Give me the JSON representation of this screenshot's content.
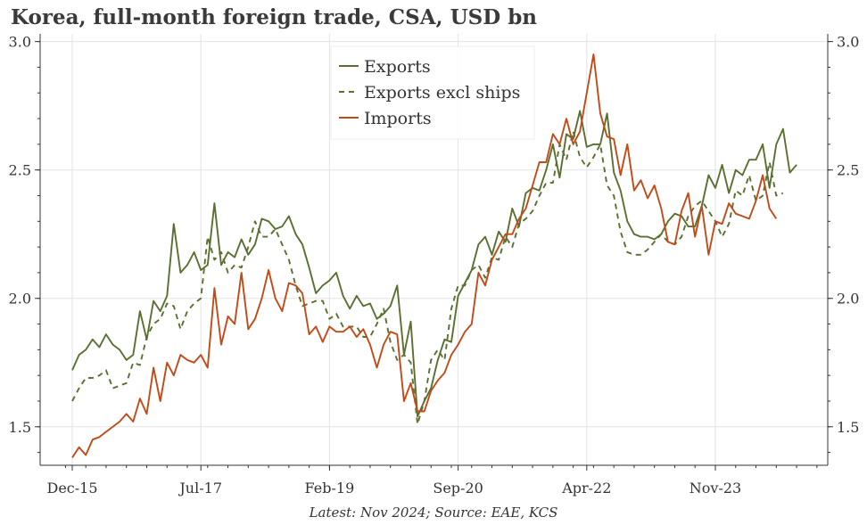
{
  "title": "Korea, full-month foreign trade, CSA, USD bn",
  "footer": "Latest: Nov 2024; Source: EAE, KCS",
  "chart_data": {
    "type": "line",
    "ylim": [
      1.35,
      3.03
    ],
    "yticks": [
      "1.5",
      "2.0",
      "2.5",
      "3.0"
    ],
    "xticks": [
      "Dec-15",
      "Jul-17",
      "Feb-19",
      "Sep-20",
      "Apr-22",
      "Nov-23"
    ],
    "x_start": "Dec-15",
    "x_end": "Nov-24",
    "grid": true,
    "legend_position": "top-center",
    "series": [
      {
        "name": "Exports",
        "color": "#5a7030",
        "dash": "none",
        "values": [
          1.72,
          1.78,
          1.8,
          1.84,
          1.81,
          1.86,
          1.82,
          1.8,
          1.76,
          1.78,
          1.95,
          1.84,
          1.99,
          1.95,
          2.01,
          2.29,
          2.1,
          2.13,
          2.18,
          2.11,
          2.13,
          2.37,
          2.13,
          2.18,
          2.16,
          2.23,
          2.17,
          2.21,
          2.31,
          2.3,
          2.27,
          2.28,
          2.32,
          2.25,
          2.21,
          2.12,
          2.02,
          2.05,
          2.07,
          2.1,
          2.01,
          1.96,
          2.01,
          1.97,
          1.98,
          1.92,
          1.94,
          1.97,
          2.05,
          1.78,
          1.91,
          1.54,
          1.6,
          1.65,
          1.76,
          1.84,
          1.83,
          2.01,
          2.06,
          2.11,
          2.21,
          2.24,
          2.17,
          2.26,
          2.22,
          2.35,
          2.28,
          2.41,
          2.43,
          2.42,
          2.5,
          2.6,
          2.47,
          2.64,
          2.62,
          2.73,
          2.59,
          2.6,
          2.6,
          2.72,
          2.49,
          2.42,
          2.3,
          2.25,
          2.24,
          2.24,
          2.23,
          2.25,
          2.3,
          2.33,
          2.32,
          2.28,
          2.28,
          2.36,
          2.48,
          2.43,
          2.52,
          2.41,
          2.5,
          2.48,
          2.54,
          2.54,
          2.6,
          2.43,
          2.6,
          2.66,
          2.49,
          2.52
        ]
      },
      {
        "name": "Exports excl ships",
        "color": "#5a7030",
        "dash": "6,5",
        "values": [
          1.6,
          1.65,
          1.69,
          1.69,
          1.7,
          1.72,
          1.65,
          1.66,
          1.67,
          1.75,
          1.74,
          1.85,
          1.9,
          1.92,
          1.98,
          1.97,
          1.88,
          1.95,
          1.98,
          2.0,
          2.24,
          2.15,
          2.18,
          2.1,
          2.13,
          2.12,
          2.2,
          2.3,
          2.24,
          2.24,
          2.27,
          2.21,
          2.15,
          2.05,
          1.97,
          1.98,
          1.99,
          1.99,
          1.92,
          1.94,
          1.89,
          1.89,
          1.89,
          1.85,
          1.85,
          1.9,
          1.96,
          1.83,
          1.76,
          1.78,
          1.75,
          1.51,
          1.6,
          1.76,
          1.8,
          1.76,
          1.96,
          2.05,
          2.05,
          2.11,
          2.13,
          2.08,
          2.16,
          2.15,
          2.24,
          2.2,
          2.29,
          2.31,
          2.34,
          2.4,
          2.45,
          2.45,
          2.6,
          2.54,
          2.65,
          2.55,
          2.51,
          2.55,
          2.6,
          2.44,
          2.4,
          2.26,
          2.18,
          2.17,
          2.17,
          2.19,
          2.22,
          2.25,
          2.22,
          2.21,
          2.24,
          2.32,
          2.36,
          2.38,
          2.34,
          2.3,
          2.24,
          2.29,
          2.42,
          2.4,
          2.48,
          2.38,
          2.4,
          2.53,
          2.4,
          2.41
        ]
      },
      {
        "name": "Imports",
        "color": "#c24a17",
        "dash": "none",
        "values": [
          1.38,
          1.42,
          1.39,
          1.45,
          1.46,
          1.48,
          1.5,
          1.52,
          1.55,
          1.52,
          1.61,
          1.55,
          1.73,
          1.6,
          1.75,
          1.7,
          1.78,
          1.76,
          1.75,
          1.78,
          1.73,
          2.04,
          1.82,
          1.93,
          1.9,
          2.1,
          1.88,
          1.92,
          2.0,
          2.11,
          2.0,
          1.95,
          2.06,
          2.05,
          2.02,
          1.86,
          1.89,
          1.83,
          1.89,
          1.87,
          1.87,
          1.89,
          1.85,
          1.88,
          1.82,
          1.73,
          1.82,
          1.87,
          1.86,
          1.6,
          1.67,
          1.56,
          1.56,
          1.64,
          1.68,
          1.71,
          1.78,
          1.82,
          1.87,
          1.9,
          2.1,
          2.05,
          2.15,
          2.2,
          2.25,
          2.25,
          2.31,
          2.35,
          2.44,
          2.53,
          2.53,
          2.64,
          2.6,
          2.7,
          2.6,
          2.65,
          2.8,
          2.95,
          2.72,
          2.63,
          2.62,
          2.48,
          2.6,
          2.42,
          2.46,
          2.39,
          2.44,
          2.35,
          2.22,
          2.21,
          2.34,
          2.41,
          2.24,
          2.36,
          2.17,
          2.3,
          2.29,
          2.37,
          2.33,
          2.32,
          2.31,
          2.38,
          2.48,
          2.35,
          2.31
        ]
      }
    ]
  }
}
